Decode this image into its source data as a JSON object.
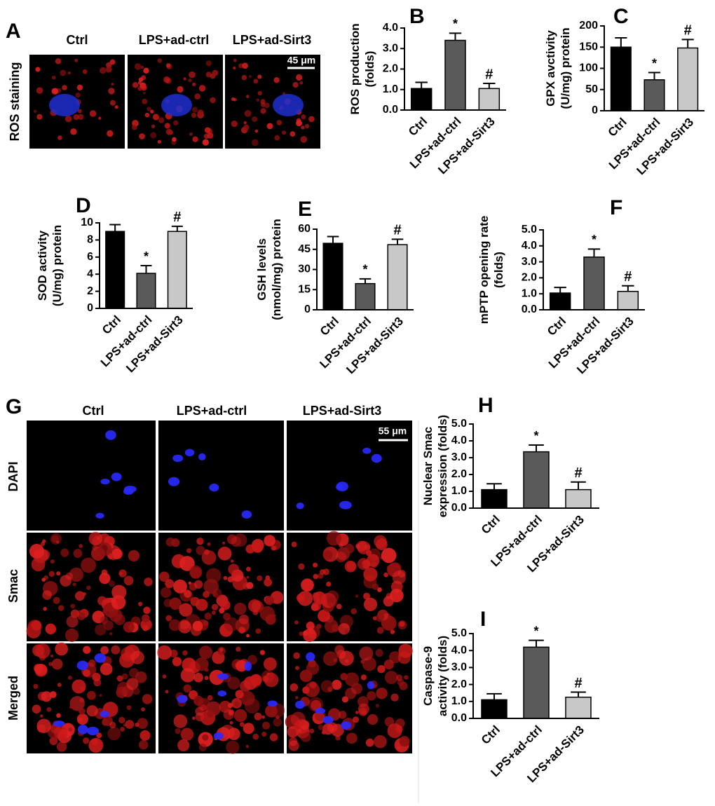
{
  "images": [
    {
      "panel": "A",
      "row_labels": [
        "ROS staining"
      ],
      "column_labels": [
        "Ctrl",
        "LPS+ad-ctrl",
        "LPS+ad-Sirt3"
      ],
      "scale_bar": "45 μm"
    },
    {
      "panel": "G",
      "row_labels": [
        "DAPI",
        "Smac",
        "Merged"
      ],
      "column_labels": [
        "Ctrl",
        "LPS+ad-ctrl",
        "LPS+ad-Sirt3"
      ],
      "scale_bar": "55 μm"
    }
  ],
  "chart_data": [
    {
      "type": "bar",
      "panel": "B",
      "y_label": [
        "ROS production",
        "(folds)"
      ],
      "categories": [
        "Ctrl",
        "LPS+ad-ctrl",
        "LPS+ad-Sirt3"
      ],
      "values": [
        1.05,
        3.4,
        1.05
      ],
      "errors": [
        0.3,
        0.35,
        0.25
      ],
      "markers": [
        null,
        "*",
        "#"
      ],
      "colors": [
        "#000000",
        "#5a5a5a",
        "#c8c8c8"
      ],
      "ylim": [
        0,
        4
      ],
      "yticks": [
        {
          "value": 0,
          "label": "0.0"
        },
        {
          "value": 1,
          "label": "1.0"
        },
        {
          "value": 2,
          "label": "2.0"
        },
        {
          "value": 3,
          "label": "3.0"
        },
        {
          "value": 4,
          "label": "4.0"
        }
      ]
    },
    {
      "type": "bar",
      "panel": "C",
      "y_label": [
        "GPX avctivity",
        "(U/mg) protein"
      ],
      "categories": [
        "Ctrl",
        "LPS+ad-ctrl",
        "LPS+ad-Sirt3"
      ],
      "values": [
        150,
        73,
        148
      ],
      "errors": [
        22,
        17,
        20
      ],
      "markers": [
        null,
        "*",
        "#"
      ],
      "colors": [
        "#000000",
        "#5a5a5a",
        "#c8c8c8"
      ],
      "ylim": [
        0,
        200
      ],
      "yticks": [
        0,
        50,
        100,
        150,
        200
      ]
    },
    {
      "type": "bar",
      "panel": "D",
      "y_label": [
        "SOD activity",
        "(U/mg) protein"
      ],
      "categories": [
        "Ctrl",
        "LPS+ad-ctrl",
        "LPS+ad-Sirt3"
      ],
      "values": [
        9.0,
        4.1,
        9.0
      ],
      "errors": [
        0.8,
        0.9,
        0.6
      ],
      "markers": [
        null,
        "*",
        "#"
      ],
      "colors": [
        "#000000",
        "#5a5a5a",
        "#c8c8c8"
      ],
      "ylim": [
        0,
        10
      ],
      "yticks": [
        0,
        2,
        4,
        6,
        8,
        10
      ]
    },
    {
      "type": "bar",
      "panel": "E",
      "y_label": [
        "GSH levels",
        "(nmol/mg) protein"
      ],
      "categories": [
        "Ctrl",
        "LPS+ad-ctrl",
        "LPS+ad-Sirt3"
      ],
      "values": [
        49.5,
        19.5,
        48.5
      ],
      "errors": [
        5,
        3.5,
        4
      ],
      "markers": [
        null,
        "*",
        "#"
      ],
      "colors": [
        "#000000",
        "#5a5a5a",
        "#c8c8c8"
      ],
      "ylim": [
        0,
        60
      ],
      "yticks": [
        0,
        15,
        30,
        45,
        60
      ]
    },
    {
      "type": "bar",
      "panel": "F",
      "y_label": [
        "mPTP opening rate",
        "(folds)"
      ],
      "categories": [
        "Ctrl",
        "LPS+ad-ctrl",
        "LPS+ad-Sirt3"
      ],
      "values": [
        1.05,
        3.3,
        1.15
      ],
      "errors": [
        0.35,
        0.5,
        0.35
      ],
      "markers": [
        null,
        "*",
        "#"
      ],
      "colors": [
        "#000000",
        "#5a5a5a",
        "#c8c8c8"
      ],
      "ylim": [
        0,
        5
      ],
      "yticks": [
        {
          "value": 0,
          "label": "0.0"
        },
        {
          "value": 1,
          "label": "1.0"
        },
        {
          "value": 2,
          "label": "2.0"
        },
        {
          "value": 3,
          "label": "3.0"
        },
        {
          "value": 4,
          "label": "4.0"
        },
        {
          "value": 5,
          "label": "5.0"
        }
      ]
    },
    {
      "type": "bar",
      "panel": "H",
      "y_label": [
        "Nuclear Smac",
        "expression (folds)"
      ],
      "categories": [
        "Ctrl",
        "LPS+ad-ctrl",
        "LPS+ad-Sirt3"
      ],
      "values": [
        1.1,
        3.35,
        1.1
      ],
      "errors": [
        0.35,
        0.4,
        0.45
      ],
      "markers": [
        null,
        "*",
        "#"
      ],
      "colors": [
        "#000000",
        "#5a5a5a",
        "#c8c8c8"
      ],
      "ylim": [
        0,
        5
      ],
      "yticks": [
        {
          "value": 0,
          "label": "0.0"
        },
        {
          "value": 1,
          "label": "1.0"
        },
        {
          "value": 2,
          "label": "2.0"
        },
        {
          "value": 3,
          "label": "3.0"
        },
        {
          "value": 4,
          "label": "4.0"
        },
        {
          "value": 5,
          "label": "5.0"
        }
      ]
    },
    {
      "type": "bar",
      "panel": "I",
      "y_label": [
        "Caspase-9",
        "activity (folds)"
      ],
      "categories": [
        "Ctrl",
        "LPS+ad-ctrl",
        "LPS+ad-Sirt3"
      ],
      "values": [
        1.1,
        4.2,
        1.25
      ],
      "errors": [
        0.35,
        0.4,
        0.3
      ],
      "markers": [
        null,
        "*",
        "#"
      ],
      "colors": [
        "#000000",
        "#5a5a5a",
        "#c8c8c8"
      ],
      "ylim": [
        0,
        5
      ],
      "yticks": [
        {
          "value": 0,
          "label": "0.0"
        },
        {
          "value": 1,
          "label": "1.0"
        },
        {
          "value": 2,
          "label": "2.0"
        },
        {
          "value": 3,
          "label": "3.0"
        },
        {
          "value": 4,
          "label": "4.0"
        },
        {
          "value": 5,
          "label": "5.0"
        }
      ]
    }
  ]
}
